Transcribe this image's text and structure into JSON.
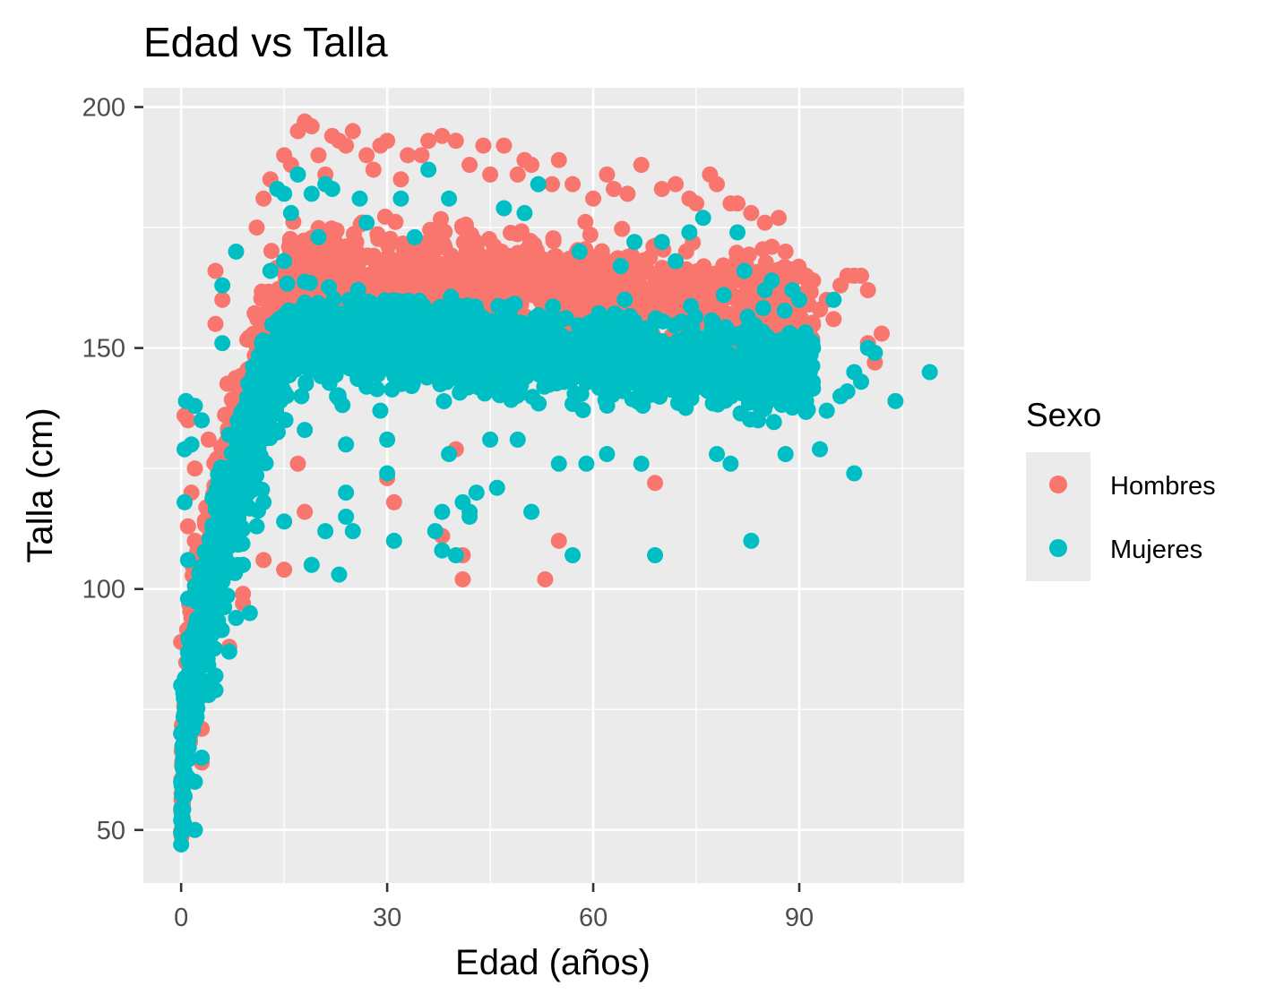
{
  "chart_data": {
    "type": "scatter",
    "title": "Edad vs Talla",
    "xlabel": "Edad (años)",
    "ylabel": "Talla (cm)",
    "xlim": [
      -5.5,
      114
    ],
    "ylim": [
      39,
      204
    ],
    "x_ticks": [
      0,
      30,
      60,
      90
    ],
    "y_ticks": [
      50,
      100,
      150,
      200
    ],
    "grid": true,
    "legend": {
      "title": "Sexo",
      "placement": "right",
      "entries": [
        "Hombres",
        "Mujeres"
      ]
    },
    "series": [
      {
        "name": "Hombres",
        "color": "#F8766D",
        "points": [
          [
            0,
            89
          ],
          [
            0,
            70
          ],
          [
            0.5,
            136
          ],
          [
            1,
            135
          ],
          [
            1,
            113
          ],
          [
            1.5,
            120
          ],
          [
            2,
            125
          ],
          [
            2,
            110
          ],
          [
            3,
            71
          ],
          [
            3,
            64
          ],
          [
            4,
            131
          ],
          [
            5,
            166
          ],
          [
            5,
            155
          ],
          [
            6,
            160
          ],
          [
            7,
            88
          ],
          [
            9,
            99
          ],
          [
            9,
            97
          ],
          [
            11,
            175
          ],
          [
            12,
            181
          ],
          [
            12,
            106
          ],
          [
            13,
            185
          ],
          [
            15,
            104
          ],
          [
            15,
            190
          ],
          [
            16,
            188
          ],
          [
            17,
            195
          ],
          [
            17,
            126
          ],
          [
            18,
            116
          ],
          [
            18,
            197
          ],
          [
            19,
            196
          ],
          [
            20,
            190
          ],
          [
            21,
            186
          ],
          [
            22,
            194
          ],
          [
            23,
            193
          ],
          [
            24,
            192
          ],
          [
            25,
            195
          ],
          [
            27,
            190
          ],
          [
            28,
            187
          ],
          [
            29,
            192
          ],
          [
            30,
            193
          ],
          [
            30,
            123
          ],
          [
            31,
            118
          ],
          [
            32,
            185
          ],
          [
            33,
            190
          ],
          [
            35,
            190
          ],
          [
            36,
            193
          ],
          [
            38,
            194
          ],
          [
            38,
            111
          ],
          [
            40,
            193
          ],
          [
            40,
            129
          ],
          [
            41,
            107
          ],
          [
            41,
            102
          ],
          [
            42,
            188
          ],
          [
            44,
            192
          ],
          [
            45,
            186
          ],
          [
            47,
            192
          ],
          [
            49,
            186
          ],
          [
            50,
            189
          ],
          [
            51,
            188
          ],
          [
            53,
            102
          ],
          [
            54,
            184
          ],
          [
            55,
            110
          ],
          [
            55,
            189
          ],
          [
            57,
            184
          ],
          [
            60,
            181
          ],
          [
            62,
            186
          ],
          [
            63,
            183
          ],
          [
            65,
            182
          ],
          [
            67,
            188
          ],
          [
            69,
            122
          ],
          [
            70,
            183
          ],
          [
            72,
            184
          ],
          [
            74,
            181
          ],
          [
            75,
            180
          ],
          [
            77,
            186
          ],
          [
            78,
            184
          ],
          [
            80,
            180
          ],
          [
            81,
            180
          ],
          [
            83,
            178
          ],
          [
            85,
            176
          ],
          [
            86,
            171
          ],
          [
            87,
            177
          ],
          [
            88,
            170
          ],
          [
            89,
            166
          ],
          [
            90,
            165
          ],
          [
            91,
            165
          ],
          [
            92,
            164
          ],
          [
            93,
            158
          ],
          [
            94,
            160
          ],
          [
            95,
            156
          ],
          [
            96,
            163
          ],
          [
            97,
            165
          ],
          [
            98,
            165
          ],
          [
            99,
            165
          ],
          [
            100,
            162
          ],
          [
            100,
            151
          ],
          [
            101,
            147
          ],
          [
            102,
            153
          ]
        ]
      },
      {
        "name": "Mujeres",
        "color": "#00BFC4",
        "points": [
          [
            0,
            80
          ],
          [
            0,
            70
          ],
          [
            0,
            60
          ],
          [
            0,
            52
          ],
          [
            0,
            47
          ],
          [
            0.5,
            118
          ],
          [
            0.5,
            129
          ],
          [
            0.7,
            139
          ],
          [
            1,
            98
          ],
          [
            1,
            106
          ],
          [
            1.5,
            130
          ],
          [
            2,
            138
          ],
          [
            2,
            50
          ],
          [
            2,
            60
          ],
          [
            3,
            135
          ],
          [
            3,
            65
          ],
          [
            4,
            78
          ],
          [
            5,
            79
          ],
          [
            5,
            82
          ],
          [
            6,
            163
          ],
          [
            6,
            151
          ],
          [
            7,
            87
          ],
          [
            8,
            170
          ],
          [
            8,
            94
          ],
          [
            9,
            105
          ],
          [
            10,
            95
          ],
          [
            11,
            113
          ],
          [
            12,
            118
          ],
          [
            13,
            166
          ],
          [
            14,
            183
          ],
          [
            15,
            182
          ],
          [
            15,
            114
          ],
          [
            16,
            178
          ],
          [
            17,
            186
          ],
          [
            18,
            133
          ],
          [
            19,
            105
          ],
          [
            19,
            182
          ],
          [
            20,
            173
          ],
          [
            21,
            184
          ],
          [
            21,
            112
          ],
          [
            22,
            183
          ],
          [
            23,
            103
          ],
          [
            24,
            115
          ],
          [
            24,
            130
          ],
          [
            24,
            120
          ],
          [
            25,
            112
          ],
          [
            26,
            181
          ],
          [
            27,
            176
          ],
          [
            29,
            137
          ],
          [
            30,
            124
          ],
          [
            30,
            131
          ],
          [
            31,
            110
          ],
          [
            32,
            181
          ],
          [
            34,
            173
          ],
          [
            36,
            187
          ],
          [
            37,
            112
          ],
          [
            38,
            108
          ],
          [
            38,
            116
          ],
          [
            39,
            128
          ],
          [
            39,
            181
          ],
          [
            40,
            107
          ],
          [
            41,
            118
          ],
          [
            42,
            115
          ],
          [
            42,
            116
          ],
          [
            43,
            120
          ],
          [
            45,
            131
          ],
          [
            46,
            121
          ],
          [
            47,
            179
          ],
          [
            49,
            131
          ],
          [
            50,
            178
          ],
          [
            51,
            116
          ],
          [
            52,
            184
          ],
          [
            55,
            126
          ],
          [
            57,
            107
          ],
          [
            58,
            170
          ],
          [
            59,
            126
          ],
          [
            62,
            128
          ],
          [
            64,
            167
          ],
          [
            66,
            172
          ],
          [
            67,
            126
          ],
          [
            69,
            107
          ],
          [
            70,
            172
          ],
          [
            72,
            168
          ],
          [
            74,
            174
          ],
          [
            76,
            177
          ],
          [
            78,
            128
          ],
          [
            79,
            161
          ],
          [
            80,
            126
          ],
          [
            81,
            174
          ],
          [
            82,
            166
          ],
          [
            83,
            110
          ],
          [
            84,
            135
          ],
          [
            85,
            162
          ],
          [
            86,
            164
          ],
          [
            88,
            128
          ],
          [
            89,
            162
          ],
          [
            90,
            160
          ],
          [
            91,
            139
          ],
          [
            92,
            150
          ],
          [
            93,
            129
          ],
          [
            94,
            137
          ],
          [
            95,
            160
          ],
          [
            96,
            140
          ],
          [
            97,
            141
          ],
          [
            98,
            124
          ],
          [
            98,
            145
          ],
          [
            99,
            143
          ],
          [
            100,
            150
          ],
          [
            101,
            149
          ],
          [
            104,
            139
          ],
          [
            109,
            145
          ]
        ]
      }
    ]
  }
}
